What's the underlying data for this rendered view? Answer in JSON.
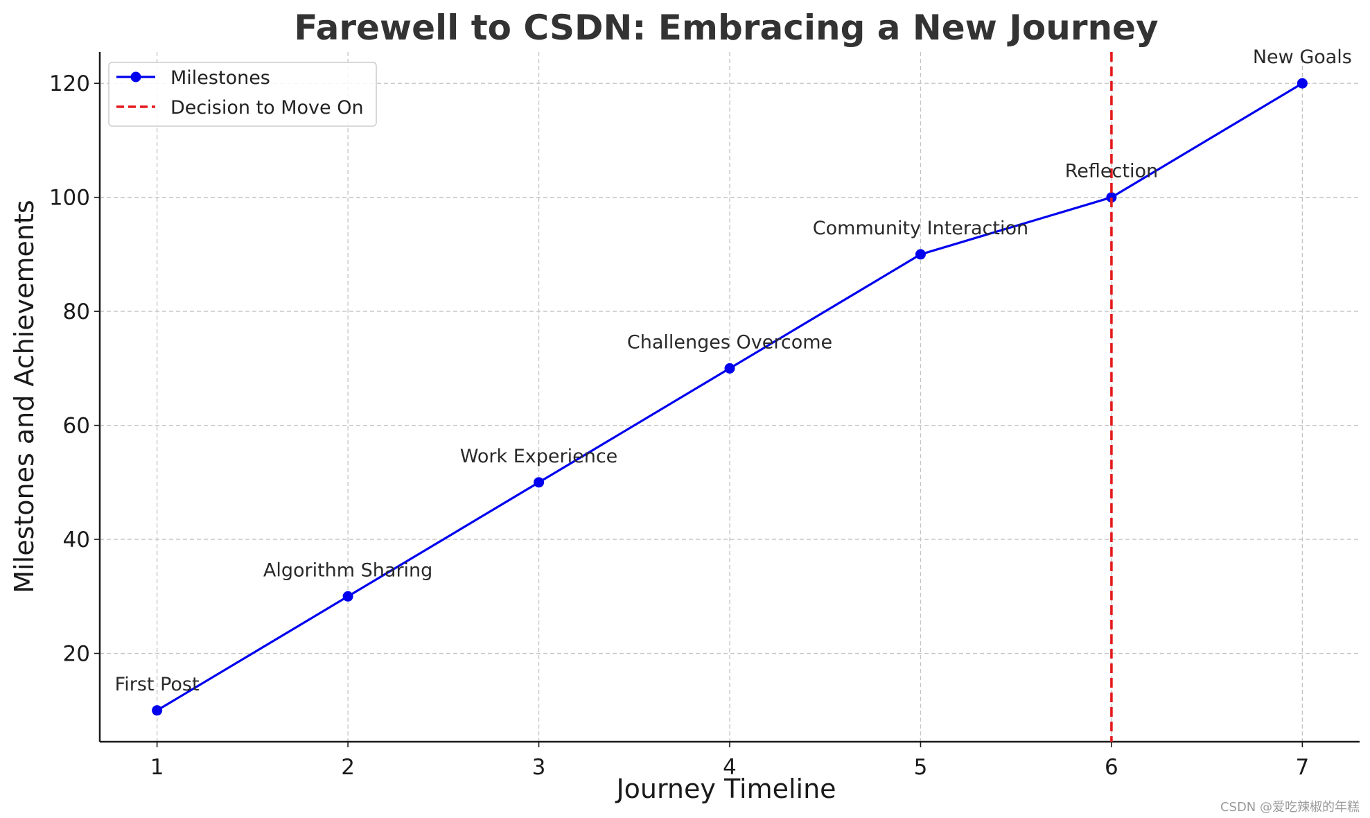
{
  "chart_data": {
    "type": "line",
    "title": "Farewell to CSDN: Embracing a New Journey",
    "xlabel": "Journey Timeline",
    "ylabel": "Milestones and Achievements",
    "x": [
      1,
      2,
      3,
      4,
      5,
      6,
      7
    ],
    "xlim": [
      0.7,
      7.3
    ],
    "ylim": [
      4.5,
      125.5
    ],
    "xticks": [
      1,
      2,
      3,
      4,
      5,
      6,
      7
    ],
    "yticks": [
      20,
      40,
      60,
      80,
      100,
      120
    ],
    "grid": true,
    "legend_position": "top-left",
    "series": [
      {
        "name": "Milestones",
        "values": [
          10,
          30,
          50,
          70,
          90,
          100,
          120
        ],
        "color": "#0000ee",
        "marker": "circle",
        "style": "solid"
      }
    ],
    "vlines": [
      {
        "name": "Decision to Move On",
        "x": 6,
        "color": "#e31a1c",
        "style": "dashed"
      }
    ],
    "annotations": [
      {
        "x": 1,
        "y": 10,
        "text": "First Post"
      },
      {
        "x": 2,
        "y": 30,
        "text": "Algorithm Sharing"
      },
      {
        "x": 3,
        "y": 50,
        "text": "Work Experience"
      },
      {
        "x": 4,
        "y": 70,
        "text": "Challenges Overcome"
      },
      {
        "x": 5,
        "y": 90,
        "text": "Community Interaction"
      },
      {
        "x": 6,
        "y": 100,
        "text": "Reflection"
      },
      {
        "x": 7,
        "y": 120,
        "text": "New Goals"
      }
    ]
  },
  "watermark": "CSDN @爱吃辣椒的年糕"
}
